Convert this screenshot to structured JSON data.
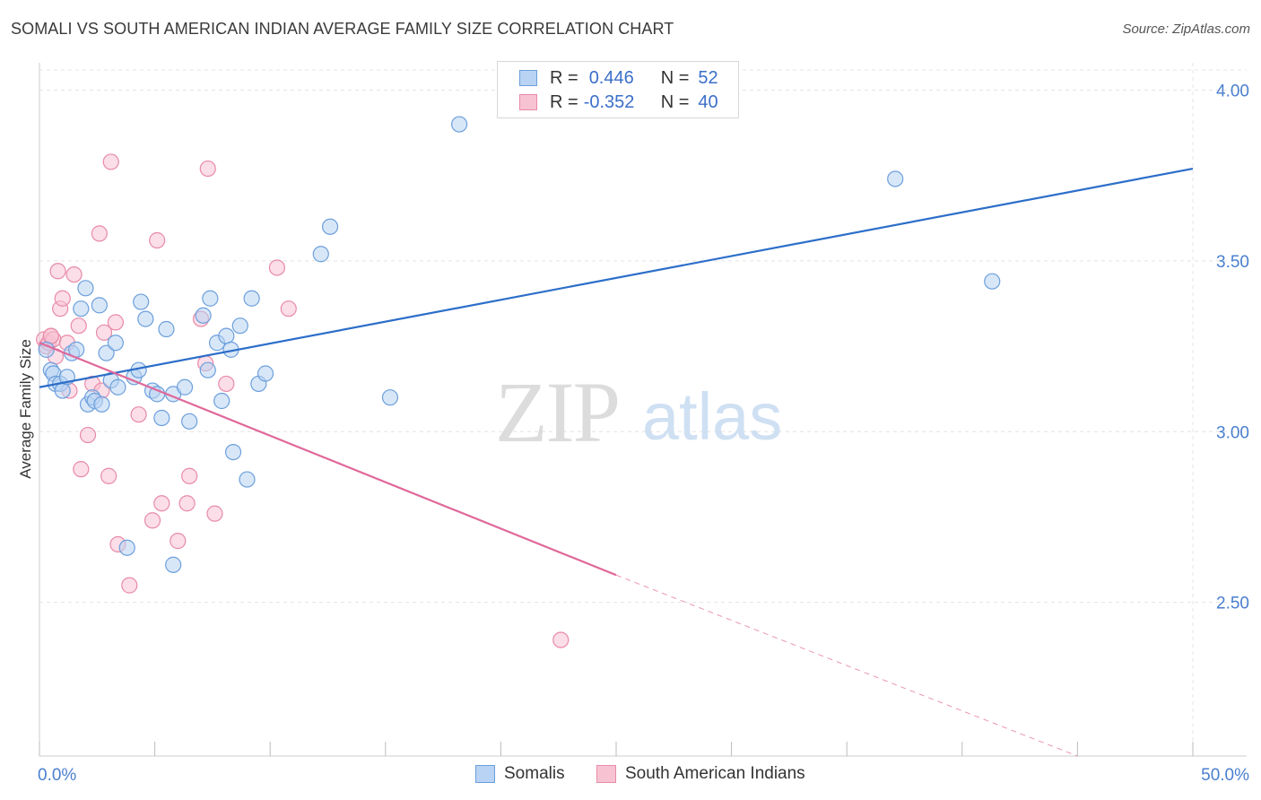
{
  "title": "SOMALI VS SOUTH AMERICAN INDIAN AVERAGE FAMILY SIZE CORRELATION CHART",
  "source": "Source: ZipAtlas.com",
  "watermark": {
    "zip": "ZIP",
    "atlas": "atlas"
  },
  "colors": {
    "blue_fill": "#b8d3f3",
    "blue_stroke": "#6c9fdc",
    "blue_line": "#2c6ec9",
    "pink_fill": "#f7c3d3",
    "pink_stroke": "#e88aa8",
    "pink_line": "#e0689a",
    "grid": "#e4e4e4",
    "tick_text": "#4a7fcf"
  },
  "legend": {
    "rows": [
      {
        "r_label": "R =",
        "r_value": "0.446",
        "n_label": "N =",
        "n_value": "52"
      },
      {
        "r_label": "R =",
        "r_value": "-0.352",
        "n_label": "N =",
        "n_value": "40"
      }
    ]
  },
  "chart_data": {
    "type": "scatter",
    "title": "SOMALI VS SOUTH AMERICAN INDIAN AVERAGE FAMILY SIZE CORRELATION CHART",
    "xlabel": "",
    "ylabel": "Average Family Size",
    "xlim": [
      0,
      50
    ],
    "ylim": [
      2.05,
      4.08
    ],
    "x_tick_labels": [
      "0.0%",
      "50.0%"
    ],
    "y_ticks": [
      2.5,
      3.0,
      3.5,
      4.0
    ],
    "y_tick_labels": [
      "2.50",
      "3.00",
      "3.50",
      "4.00"
    ],
    "grid": true,
    "series": [
      {
        "name": "Somalis",
        "points": [
          [
            0.3,
            3.24
          ],
          [
            0.5,
            3.18
          ],
          [
            0.6,
            3.17
          ],
          [
            0.7,
            3.14
          ],
          [
            0.9,
            3.14
          ],
          [
            1.0,
            3.12
          ],
          [
            1.2,
            3.16
          ],
          [
            1.4,
            3.23
          ],
          [
            1.6,
            3.24
          ],
          [
            1.8,
            3.36
          ],
          [
            2.0,
            3.42
          ],
          [
            2.1,
            3.08
          ],
          [
            2.3,
            3.1
          ],
          [
            2.4,
            3.09
          ],
          [
            2.6,
            3.37
          ],
          [
            2.7,
            3.08
          ],
          [
            2.9,
            3.23
          ],
          [
            3.1,
            3.15
          ],
          [
            3.3,
            3.26
          ],
          [
            3.4,
            3.13
          ],
          [
            3.8,
            2.66
          ],
          [
            4.1,
            3.16
          ],
          [
            4.3,
            3.18
          ],
          [
            4.4,
            3.38
          ],
          [
            4.6,
            3.33
          ],
          [
            4.9,
            3.12
          ],
          [
            5.1,
            3.11
          ],
          [
            5.3,
            3.04
          ],
          [
            5.5,
            3.3
          ],
          [
            5.8,
            3.11
          ],
          [
            5.8,
            2.61
          ],
          [
            6.3,
            3.13
          ],
          [
            6.5,
            3.03
          ],
          [
            7.1,
            3.34
          ],
          [
            7.3,
            3.18
          ],
          [
            7.4,
            3.39
          ],
          [
            7.7,
            3.26
          ],
          [
            7.9,
            3.09
          ],
          [
            8.1,
            3.28
          ],
          [
            8.3,
            3.24
          ],
          [
            8.4,
            2.94
          ],
          [
            8.7,
            3.31
          ],
          [
            9.0,
            2.86
          ],
          [
            9.2,
            3.39
          ],
          [
            9.5,
            3.14
          ],
          [
            9.8,
            3.17
          ],
          [
            12.2,
            3.52
          ],
          [
            12.6,
            3.6
          ],
          [
            15.2,
            3.1
          ],
          [
            18.2,
            3.9
          ],
          [
            37.1,
            3.74
          ],
          [
            41.3,
            3.44
          ]
        ]
      },
      {
        "name": "South American Indians",
        "points": [
          [
            0.2,
            3.27
          ],
          [
            0.3,
            3.25
          ],
          [
            0.4,
            3.26
          ],
          [
            0.5,
            3.28
          ],
          [
            0.6,
            3.27
          ],
          [
            0.7,
            3.22
          ],
          [
            0.8,
            3.47
          ],
          [
            0.9,
            3.36
          ],
          [
            1.0,
            3.39
          ],
          [
            1.2,
            3.26
          ],
          [
            1.3,
            3.12
          ],
          [
            1.5,
            3.46
          ],
          [
            1.7,
            3.31
          ],
          [
            1.8,
            2.89
          ],
          [
            2.1,
            2.99
          ],
          [
            2.3,
            3.14
          ],
          [
            2.6,
            3.58
          ],
          [
            2.7,
            3.12
          ],
          [
            2.8,
            3.29
          ],
          [
            3.0,
            2.87
          ],
          [
            3.1,
            3.79
          ],
          [
            3.3,
            3.32
          ],
          [
            3.4,
            2.67
          ],
          [
            3.9,
            2.55
          ],
          [
            4.3,
            3.05
          ],
          [
            4.9,
            2.74
          ],
          [
            5.1,
            3.56
          ],
          [
            5.3,
            2.79
          ],
          [
            6.0,
            2.68
          ],
          [
            6.5,
            2.87
          ],
          [
            6.4,
            2.79
          ],
          [
            7.0,
            3.33
          ],
          [
            7.2,
            3.2
          ],
          [
            7.3,
            3.77
          ],
          [
            7.6,
            2.76
          ],
          [
            8.1,
            3.14
          ],
          [
            10.3,
            3.48
          ],
          [
            10.8,
            3.36
          ],
          [
            22.6,
            2.39
          ],
          [
            0.5,
            3.28
          ]
        ]
      }
    ],
    "trendlines": [
      {
        "series": "Somalis",
        "x": [
          0,
          50
        ],
        "y": [
          3.13,
          3.77
        ],
        "style": "solid"
      },
      {
        "series": "South American Indians",
        "x": [
          0,
          25
        ],
        "y": [
          3.26,
          2.58
        ],
        "style": "solid"
      },
      {
        "series": "South American Indians",
        "x": [
          25,
          45
        ],
        "y": [
          2.58,
          2.05
        ],
        "style": "dashed"
      }
    ]
  },
  "bottom_legend": {
    "items": [
      "Somalis",
      "South American Indians"
    ]
  }
}
